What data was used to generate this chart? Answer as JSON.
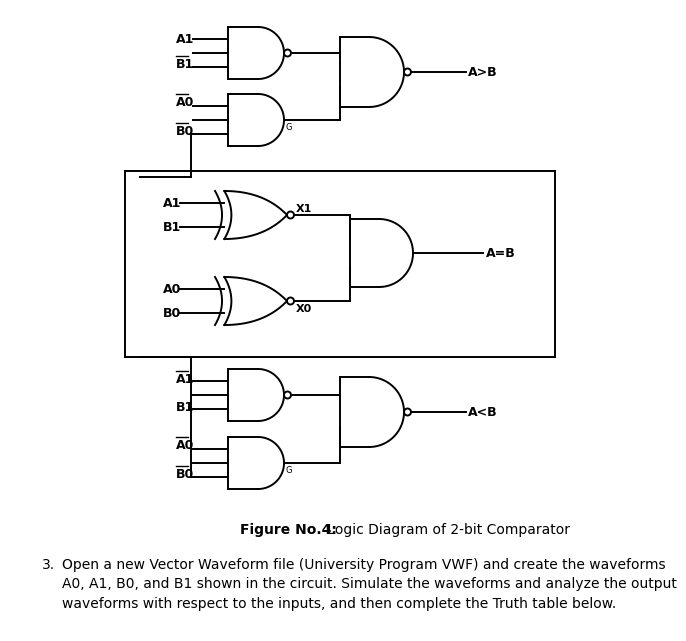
{
  "bg_color": "#ffffff",
  "lw": 1.4,
  "bubble_r": 3.5,
  "fig_width": 6.48,
  "fig_height": 6.22,
  "caption_bold": "Figure No.4:",
  "caption_regular": " Logic Diagram of 2-bit Comparator",
  "text3_number": "3.",
  "text3_body": "Open a new Vector Waveform file (University Program VWF) and create the waveforms\nA0, A1, B0, and B1 shown in the circuit. Simulate the waveforms and analyze the output\nwaveforms with respect to the inputs, and then complete the Truth table below."
}
